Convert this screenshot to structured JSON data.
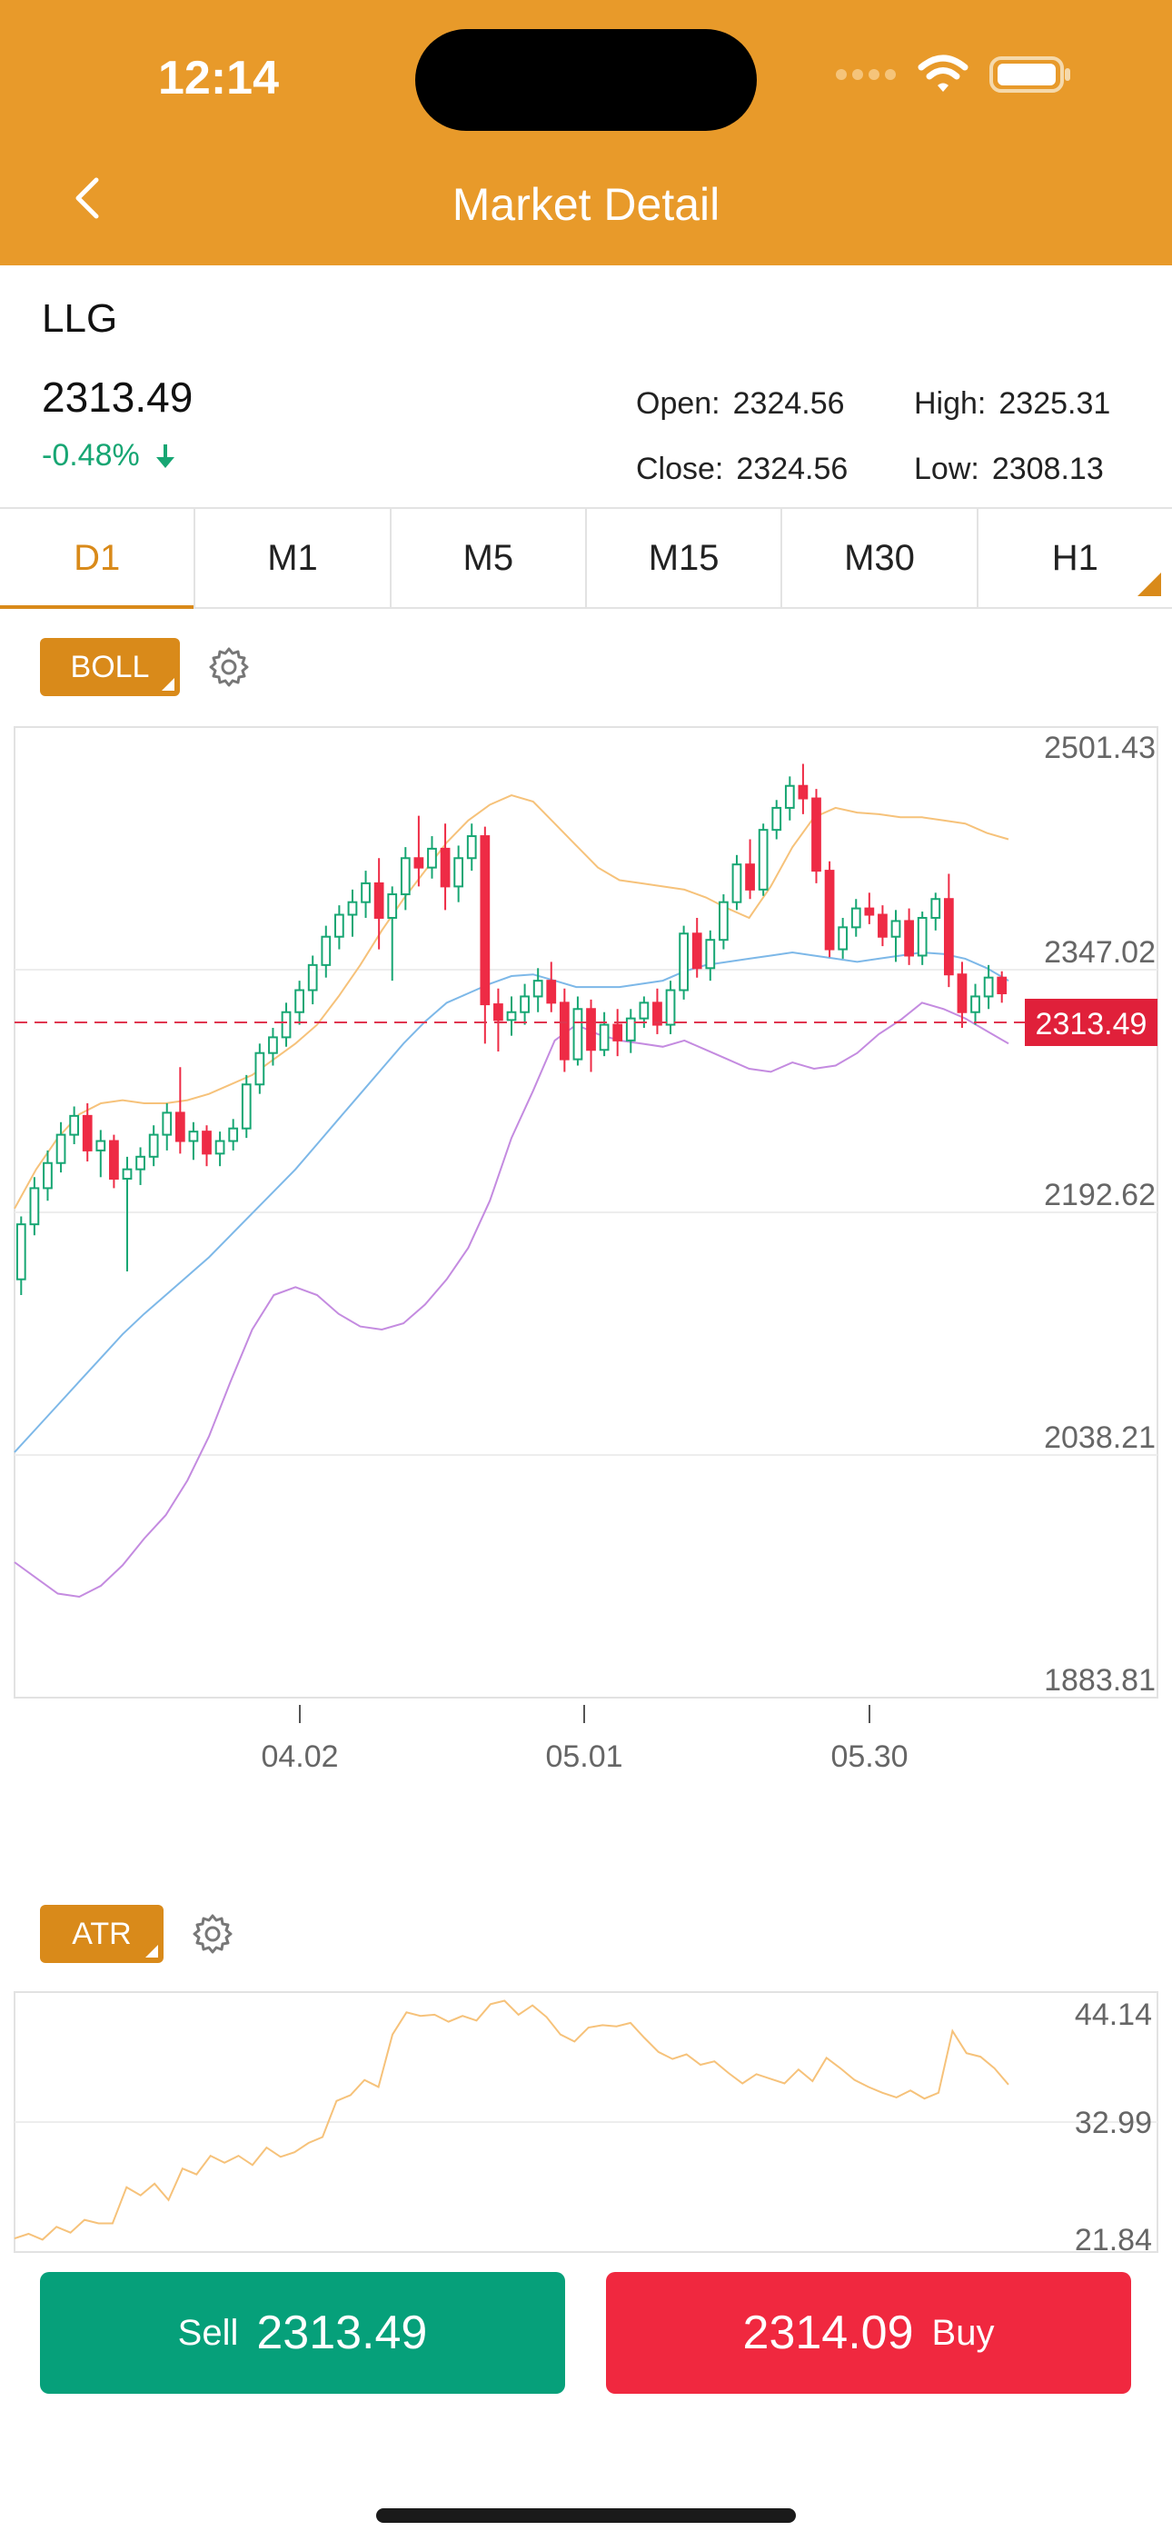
{
  "status_bar": {
    "time": "12:14"
  },
  "header": {
    "title": "Market Detail",
    "back_icon": "chevron-left-icon"
  },
  "quote": {
    "symbol": "LLG",
    "price": "2313.49",
    "change": "-0.48%",
    "change_icon": "arrow-down-icon",
    "open_label": "Open:",
    "open": "2324.56",
    "high_label": "High:",
    "high": "2325.31",
    "close_label": "Close:",
    "close": "2324.56",
    "low_label": "Low:",
    "low": "2308.13"
  },
  "tabs": [
    {
      "label": "D1",
      "active": true
    },
    {
      "label": "M1"
    },
    {
      "label": "M5"
    },
    {
      "label": "M15"
    },
    {
      "label": "M30"
    },
    {
      "label": "H1"
    }
  ],
  "indicators": {
    "main": "BOLL",
    "sub": "ATR",
    "settings_icon": "gear-icon"
  },
  "colors": {
    "accent": "#E89A2A",
    "up": "#17A673",
    "down": "#EE2B45",
    "boll_upper": "#F6C27A",
    "boll_mid": "#7DB8E8",
    "boll_lower": "#C48BE0",
    "atr": "#F6C27A"
  },
  "chart_data": [
    {
      "type": "candlestick",
      "indicator": "BOLL",
      "ylim": [
        1883.81,
        2501.43
      ],
      "y_ticks": [
        "2501.43",
        "2347.02",
        "2192.62",
        "2038.21",
        "1883.81"
      ],
      "x_ticks": [
        "04.02",
        "05.01",
        "05.30"
      ],
      "last_price_label": "2313.49",
      "last_price": 2313.49,
      "candles": [
        [
          2150,
          2190,
          2140,
          2185
        ],
        [
          2185,
          2215,
          2178,
          2208
        ],
        [
          2208,
          2232,
          2200,
          2224
        ],
        [
          2224,
          2250,
          2218,
          2242
        ],
        [
          2242,
          2260,
          2236,
          2254
        ],
        [
          2254,
          2262,
          2225,
          2232
        ],
        [
          2232,
          2245,
          2215,
          2238
        ],
        [
          2238,
          2242,
          2208,
          2214
        ],
        [
          2214,
          2228,
          2155,
          2220
        ],
        [
          2220,
          2234,
          2210,
          2228
        ],
        [
          2228,
          2248,
          2222,
          2242
        ],
        [
          2242,
          2262,
          2232,
          2256
        ],
        [
          2256,
          2285,
          2230,
          2238
        ],
        [
          2238,
          2250,
          2226,
          2244
        ],
        [
          2244,
          2248,
          2222,
          2230
        ],
        [
          2230,
          2244,
          2222,
          2238
        ],
        [
          2238,
          2252,
          2232,
          2246
        ],
        [
          2246,
          2280,
          2240,
          2274
        ],
        [
          2274,
          2300,
          2268,
          2294
        ],
        [
          2294,
          2310,
          2286,
          2304
        ],
        [
          2304,
          2326,
          2298,
          2320
        ],
        [
          2320,
          2340,
          2312,
          2334
        ],
        [
          2334,
          2356,
          2325,
          2350
        ],
        [
          2350,
          2375,
          2342,
          2368
        ],
        [
          2368,
          2388,
          2360,
          2382
        ],
        [
          2382,
          2398,
          2368,
          2390
        ],
        [
          2390,
          2410,
          2380,
          2402
        ],
        [
          2402,
          2418,
          2360,
          2380
        ],
        [
          2380,
          2400,
          2340,
          2395
        ],
        [
          2395,
          2425,
          2385,
          2418
        ],
        [
          2418,
          2445,
          2400,
          2412
        ],
        [
          2412,
          2432,
          2405,
          2424
        ],
        [
          2424,
          2440,
          2385,
          2400
        ],
        [
          2400,
          2426,
          2390,
          2418
        ],
        [
          2418,
          2440,
          2410,
          2432
        ],
        [
          2432,
          2438,
          2300,
          2325
        ],
        [
          2325,
          2335,
          2295,
          2315
        ],
        [
          2315,
          2330,
          2305,
          2320
        ],
        [
          2320,
          2338,
          2312,
          2330
        ],
        [
          2330,
          2348,
          2320,
          2340
        ],
        [
          2340,
          2352,
          2320,
          2326
        ],
        [
          2326,
          2335,
          2282,
          2290
        ],
        [
          2290,
          2330,
          2286,
          2322
        ],
        [
          2322,
          2328,
          2282,
          2296
        ],
        [
          2296,
          2320,
          2292,
          2312
        ],
        [
          2312,
          2322,
          2292,
          2302
        ],
        [
          2302,
          2322,
          2294,
          2316
        ],
        [
          2316,
          2330,
          2310,
          2326
        ],
        [
          2326,
          2335,
          2306,
          2312
        ],
        [
          2312,
          2340,
          2306,
          2334
        ],
        [
          2334,
          2375,
          2328,
          2370
        ],
        [
          2370,
          2380,
          2342,
          2348
        ],
        [
          2348,
          2372,
          2340,
          2366
        ],
        [
          2366,
          2395,
          2360,
          2390
        ],
        [
          2390,
          2420,
          2385,
          2414
        ],
        [
          2414,
          2430,
          2392,
          2398
        ],
        [
          2398,
          2440,
          2394,
          2436
        ],
        [
          2436,
          2455,
          2430,
          2450
        ],
        [
          2450,
          2470,
          2442,
          2464
        ],
        [
          2464,
          2478,
          2446,
          2456
        ],
        [
          2456,
          2462,
          2402,
          2410
        ],
        [
          2410,
          2416,
          2355,
          2360
        ],
        [
          2360,
          2380,
          2354,
          2374
        ],
        [
          2374,
          2392,
          2368,
          2386
        ],
        [
          2386,
          2396,
          2376,
          2382
        ],
        [
          2382,
          2388,
          2362,
          2368
        ],
        [
          2368,
          2385,
          2352,
          2378
        ],
        [
          2378,
          2386,
          2350,
          2356
        ],
        [
          2356,
          2384,
          2350,
          2380
        ],
        [
          2380,
          2396,
          2372,
          2392
        ],
        [
          2392,
          2408,
          2336,
          2344
        ],
        [
          2344,
          2352,
          2310,
          2320
        ],
        [
          2320,
          2338,
          2312,
          2330
        ],
        [
          2330,
          2350,
          2322,
          2342
        ],
        [
          2342,
          2346,
          2326,
          2332
        ]
      ],
      "boll_upper": [
        2195,
        2220,
        2240,
        2255,
        2262,
        2264,
        2262,
        2262,
        2264,
        2268,
        2274,
        2280,
        2290,
        2300,
        2312,
        2330,
        2350,
        2372,
        2392,
        2410,
        2428,
        2442,
        2452,
        2458,
        2454,
        2440,
        2426,
        2412,
        2404,
        2402,
        2400,
        2398,
        2393,
        2386,
        2380,
        2400,
        2425,
        2444,
        2450,
        2447,
        2446,
        2444,
        2444,
        2442,
        2440,
        2434,
        2430
      ],
      "boll_mid": [
        2040,
        2055,
        2070,
        2085,
        2100,
        2115,
        2128,
        2140,
        2152,
        2164,
        2178,
        2192,
        2206,
        2220,
        2236,
        2252,
        2268,
        2284,
        2300,
        2314,
        2326,
        2332,
        2338,
        2343,
        2344,
        2340,
        2336,
        2336,
        2336,
        2338,
        2340,
        2346,
        2350,
        2352,
        2354,
        2356,
        2358,
        2356,
        2354,
        2352,
        2354,
        2356,
        2358,
        2357,
        2354,
        2348,
        2340
      ],
      "boll_lower": [
        1970,
        1960,
        1950,
        1948,
        1955,
        1968,
        1985,
        2000,
        2022,
        2050,
        2085,
        2118,
        2140,
        2145,
        2140,
        2128,
        2120,
        2118,
        2122,
        2134,
        2150,
        2170,
        2200,
        2240,
        2270,
        2302,
        2312,
        2306,
        2302,
        2300,
        2298,
        2302,
        2296,
        2290,
        2284,
        2282,
        2288,
        2284,
        2286,
        2294,
        2306,
        2315,
        2326,
        2322,
        2316,
        2308,
        2300
      ]
    },
    {
      "type": "line",
      "indicator": "ATR",
      "ylim": [
        21.84,
        44.14
      ],
      "y_ticks": [
        "44.14",
        "32.99",
        "21.84"
      ],
      "values": [
        23.0,
        23.4,
        22.9,
        24.0,
        23.5,
        24.6,
        24.3,
        24.3,
        27.4,
        26.7,
        27.7,
        26.3,
        29.0,
        28.5,
        30.1,
        29.5,
        30.1,
        29.3,
        30.8,
        30.0,
        30.4,
        31.2,
        31.7,
        34.8,
        35.3,
        36.6,
        36.0,
        40.5,
        42.4,
        42.1,
        42.2,
        41.6,
        42.1,
        41.7,
        43.1,
        43.4,
        42.2,
        43.0,
        42.0,
        40.5,
        39.9,
        41.1,
        41.3,
        41.2,
        41.5,
        40.2,
        39.0,
        38.4,
        38.8,
        37.9,
        38.2,
        37.2,
        36.3,
        37.1,
        36.7,
        36.3,
        37.5,
        36.5,
        38.5,
        37.6,
        36.6,
        36.0,
        35.5,
        35.1,
        35.7,
        35.0,
        35.5,
        40.8,
        38.9,
        38.6,
        37.6,
        36.2
      ]
    }
  ],
  "trade": {
    "sell_label": "Sell",
    "sell_price": "2313.49",
    "buy_label": "Buy",
    "buy_price": "2314.09"
  }
}
